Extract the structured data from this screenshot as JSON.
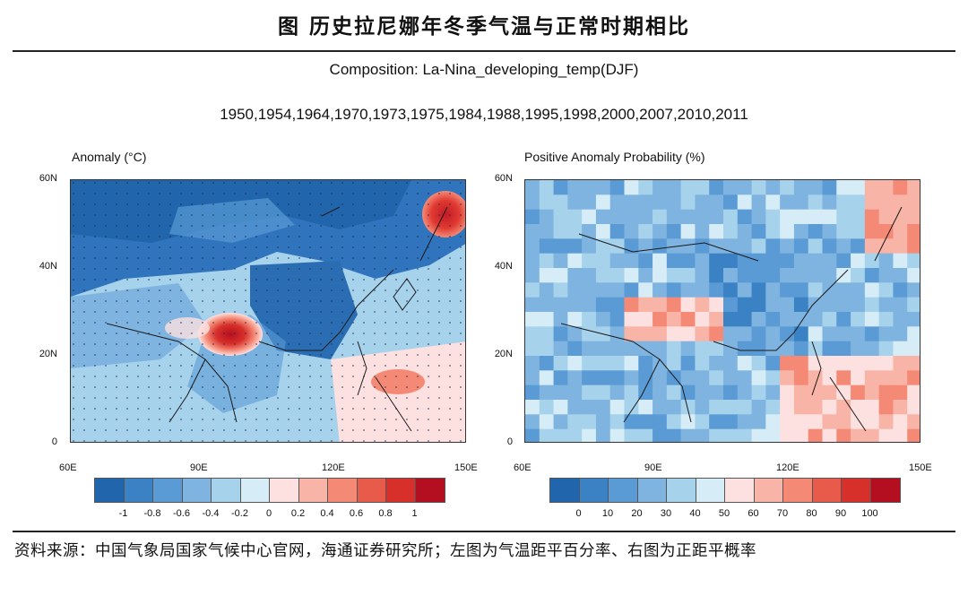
{
  "figure_title": "图  历史拉尼娜年冬季气温与正常时期相比",
  "subtitle": "Composition: La-Nina_developing_temp(DJF)",
  "years_line": "1950,1954,1964,1970,1973,1975,1984,1988,1995,1998,2000,2007,2010,2011",
  "left_panel": {
    "title": "Anomaly (°C)",
    "lat_labels": [
      "60N",
      "40N",
      "20N",
      "0"
    ],
    "lon_labels": [
      "60E",
      "90E",
      "120E",
      "150E"
    ],
    "colorbar_labels": [
      "-1",
      "-0.8",
      "-0.6",
      "-0.4",
      "-0.2",
      "0",
      "0.2",
      "0.4",
      "0.6",
      "0.8",
      "1"
    ],
    "colorbar_colors": [
      "#2166ac",
      "#3b82c4",
      "#5a9bd5",
      "#7fb4e0",
      "#a6d2ec",
      "#d6ecf7",
      "#fde0e0",
      "#f9b4a8",
      "#f48a76",
      "#e85a4a",
      "#d7302b",
      "#b40f20"
    ]
  },
  "right_panel": {
    "title": "Positive Anomaly Probability (%)",
    "lat_labels": [
      "60N",
      "40N",
      "20N",
      "0"
    ],
    "lon_labels": [
      "60E",
      "90E",
      "120E",
      "150E"
    ],
    "colorbar_labels": [
      "0",
      "10",
      "20",
      "30",
      "40",
      "50",
      "60",
      "70",
      "80",
      "90",
      "100"
    ],
    "colorbar_colors": [
      "#2166ac",
      "#3b82c4",
      "#5a9bd5",
      "#7fb4e0",
      "#a6d2ec",
      "#d6ecf7",
      "#fde0e0",
      "#f9b4a8",
      "#f48a76",
      "#e85a4a",
      "#d7302b",
      "#b40f20"
    ]
  },
  "source_note": "资料来源：中国气象局国家气候中心官网，海通证券研究所；左图为气温距平百分率、右图为正距平概率"
}
